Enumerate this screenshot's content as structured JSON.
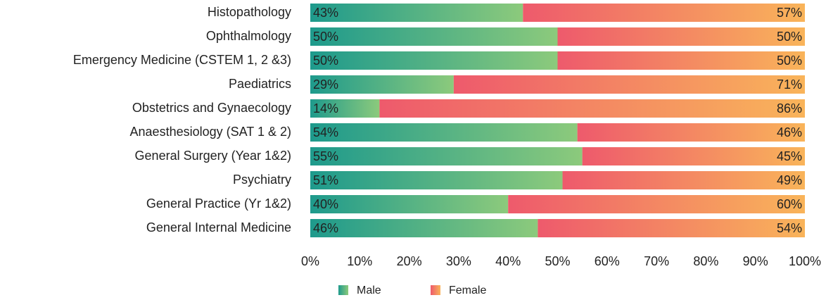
{
  "chart_data": {
    "type": "stacked_barh",
    "categories": [
      "Histopathology",
      "Ophthalmology",
      "Emergency Medicine (CSTEM 1, 2 &3)",
      "Paediatrics",
      "Obstetrics and Gynaecology",
      "Anaesthesiology (SAT 1 & 2)",
      "General Surgery (Year 1&2)",
      "Psychiatry",
      "General Practice (Yr 1&2)",
      "General Internal Medicine"
    ],
    "series": [
      {
        "name": "Male",
        "colors": [
          "#1e9a8c",
          "#8cca7c"
        ],
        "values": [
          43,
          50,
          50,
          29,
          14,
          54,
          55,
          51,
          40,
          46
        ],
        "value_labels": [
          "43%",
          "50%",
          "50%",
          "29%",
          "14%",
          "54%",
          "55%",
          "51%",
          "40%",
          "46%"
        ]
      },
      {
        "name": "Female",
        "colors": [
          "#ee5a6c",
          "#f9b45a"
        ],
        "values": [
          57,
          50,
          50,
          71,
          86,
          46,
          45,
          49,
          60,
          54
        ],
        "value_labels": [
          "57%",
          "50%",
          "50%",
          "71%",
          "86%",
          "46%",
          "45%",
          "49%",
          "60%",
          "54%"
        ]
      }
    ],
    "xlim": [
      0,
      100
    ],
    "xticks": [
      {
        "value": 0,
        "label": "0%"
      },
      {
        "value": 10,
        "label": "10%"
      },
      {
        "value": 20,
        "label": "20%"
      },
      {
        "value": 30,
        "label": "30%"
      },
      {
        "value": 40,
        "label": "40%"
      },
      {
        "value": 50,
        "label": "50%"
      },
      {
        "value": 60,
        "label": "60%"
      },
      {
        "value": 70,
        "label": "70%"
      },
      {
        "value": 80,
        "label": "80%"
      },
      {
        "value": 90,
        "label": "90%"
      },
      {
        "value": 100,
        "label": "100%"
      }
    ],
    "legend": "bottom"
  }
}
